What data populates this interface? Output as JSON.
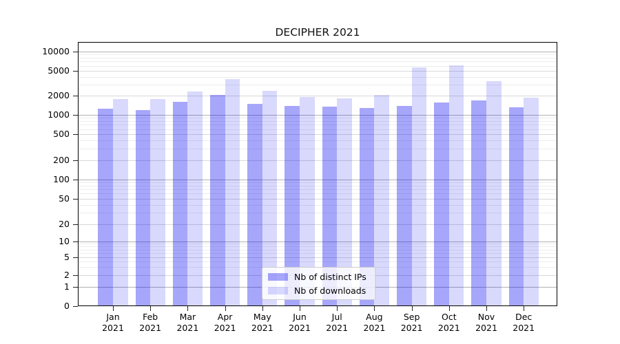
{
  "chart_data": {
    "type": "bar",
    "title": "DECIPHER 2021",
    "categories": [
      "Jan 2021",
      "Feb 2021",
      "Mar 2021",
      "Apr 2021",
      "May 2021",
      "Jun 2021",
      "Jul 2021",
      "Aug 2021",
      "Sep 2021",
      "Oct 2021",
      "Nov 2021",
      "Dec 2021"
    ],
    "series": [
      {
        "name": "Nb of distinct IPs",
        "color": "#0000f059",
        "values": [
          1250,
          1200,
          1600,
          2050,
          1500,
          1380,
          1350,
          1270,
          1370,
          1550,
          1700,
          1300
        ]
      },
      {
        "name": "Nb of downloads",
        "color": "#0000f026",
        "values": [
          1750,
          1770,
          2300,
          3700,
          2400,
          1900,
          1830,
          2070,
          5700,
          6100,
          3400,
          1840
        ]
      }
    ],
    "xlabel": "",
    "ylabel": "",
    "y_scale": "symlog",
    "y_ticks": [
      0,
      1,
      2,
      5,
      10,
      20,
      50,
      100,
      200,
      500,
      1000,
      2000,
      5000,
      10000
    ],
    "y_minor_ticks": [
      3,
      4,
      6,
      7,
      8,
      9,
      30,
      40,
      60,
      70,
      80,
      90,
      300,
      400,
      600,
      700,
      800,
      900,
      3000,
      4000,
      6000,
      7000,
      8000,
      9000
    ],
    "ylim": [
      0,
      13000
    ],
    "grid": true,
    "legend_position": "inside lower-center"
  },
  "colors": {
    "bar_ips_on_white": "#a6a6fa",
    "bar_downloads_on_white": "#d9d9fd",
    "decade_grid": "#b2b2b2",
    "labeled_grid": "#d8d8d8",
    "minor_grid": "#ededed",
    "axis": "#000000",
    "legend_border": "#cccccc",
    "background": "#ffffff"
  }
}
